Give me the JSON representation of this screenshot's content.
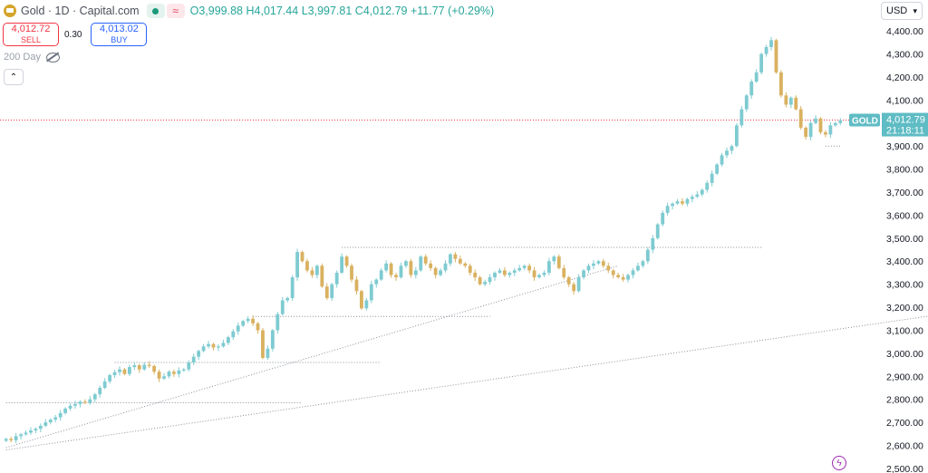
{
  "header": {
    "title": "Gold · 1D · Capital.com",
    "icons": [
      "gold-logo-icon",
      "market-open-dot-icon",
      "wave-indicator-icon"
    ],
    "ohlc": {
      "open_label": "O",
      "open": "3,999.88",
      "high_label": "H",
      "high": "4,017.44",
      "low_label": "L",
      "low": "3,997.81",
      "close_label": "C",
      "close": "4,012.79",
      "change": "+11.77 (+0.29%)"
    }
  },
  "trade": {
    "sell_price": "4,012.72",
    "sell_label": "SELL",
    "spread": "0.30",
    "buy_price": "4,013.02",
    "buy_label": "BUY"
  },
  "indicator": {
    "name": "200 Day",
    "icon": "eye-hidden-icon"
  },
  "controls": {
    "collapse_icon": "chevron-up-icon",
    "collapse_glyph": "⌃"
  },
  "currency": {
    "value": "USD",
    "icon": "chevron-down-icon"
  },
  "colors": {
    "up": "#7ecbd1",
    "down": "#d9b160",
    "price_line": "#f23645",
    "price_tag": "#5fbcc4"
  },
  "chart_data": {
    "type": "candlestick",
    "symbol": "GOLD",
    "last_price": "4,012.79",
    "countdown": "21:18:11",
    "ylim": [
      2480,
      4440
    ],
    "yticks": [
      "2,500.00",
      "2,600.00",
      "2,700.00",
      "2,800.00",
      "2,900.00",
      "3,000.00",
      "3,100.00",
      "3,200.00",
      "3,300.00",
      "3,400.00",
      "3,500.00",
      "3,600.00",
      "3,700.00",
      "3,800.00",
      "3,900.00",
      "4,000.00",
      "4,100.00",
      "4,200.00",
      "4,300.00",
      "4,400.00"
    ],
    "closes": [
      2628,
      2622,
      2640,
      2648,
      2655,
      2665,
      2672,
      2685,
      2700,
      2712,
      2722,
      2740,
      2760,
      2772,
      2780,
      2790,
      2785,
      2800,
      2822,
      2850,
      2878,
      2905,
      2918,
      2930,
      2910,
      2940,
      2948,
      2930,
      2950,
      2945,
      2920,
      2890,
      2900,
      2920,
      2910,
      2925,
      2930,
      2960,
      2985,
      3010,
      3030,
      3040,
      3025,
      3030,
      3045,
      3070,
      3095,
      3120,
      3140,
      3150,
      3130,
      3100,
      2980,
      3020,
      3100,
      3170,
      3230,
      3240,
      3330,
      3440,
      3400,
      3360,
      3340,
      3380,
      3290,
      3240,
      3300,
      3350,
      3420,
      3380,
      3320,
      3270,
      3195,
      3230,
      3300,
      3320,
      3360,
      3390,
      3340,
      3330,
      3380,
      3400,
      3340,
      3360,
      3420,
      3390,
      3370,
      3340,
      3360,
      3390,
      3430,
      3410,
      3390,
      3380,
      3350,
      3330,
      3300,
      3310,
      3330,
      3350,
      3360,
      3340,
      3350,
      3360,
      3370,
      3380,
      3360,
      3330,
      3340,
      3350,
      3400,
      3420,
      3370,
      3330,
      3300,
      3270,
      3330,
      3360,
      3380,
      3390,
      3400,
      3380,
      3360,
      3340,
      3330,
      3320,
      3340,
      3360,
      3380,
      3400,
      3450,
      3500,
      3560,
      3610,
      3640,
      3650,
      3660,
      3650,
      3670,
      3680,
      3690,
      3710,
      3740,
      3780,
      3820,
      3860,
      3880,
      3900,
      3990,
      4060,
      4120,
      4180,
      4220,
      4300,
      4330,
      4360,
      4220,
      4120,
      4080,
      4110,
      4060,
      3980,
      3940,
      4000,
      4020,
      3960,
      3950,
      3990,
      4000,
      4012
    ],
    "levels": [
      {
        "value": 2785,
        "from": 0,
        "to": 60
      },
      {
        "value": 2960,
        "from": 22,
        "to": 76
      },
      {
        "value": 3160,
        "from": 50,
        "to": 98
      },
      {
        "value": 3460,
        "from": 68,
        "to": 153
      },
      {
        "value": 3900,
        "from": 166,
        "to": 200
      }
    ],
    "trendlines": [
      {
        "from": [
          0,
          2590
        ],
        "to": [
          124,
          3380
        ]
      },
      {
        "from": [
          0,
          2580
        ],
        "to": [
          196,
          3190
        ]
      }
    ]
  }
}
